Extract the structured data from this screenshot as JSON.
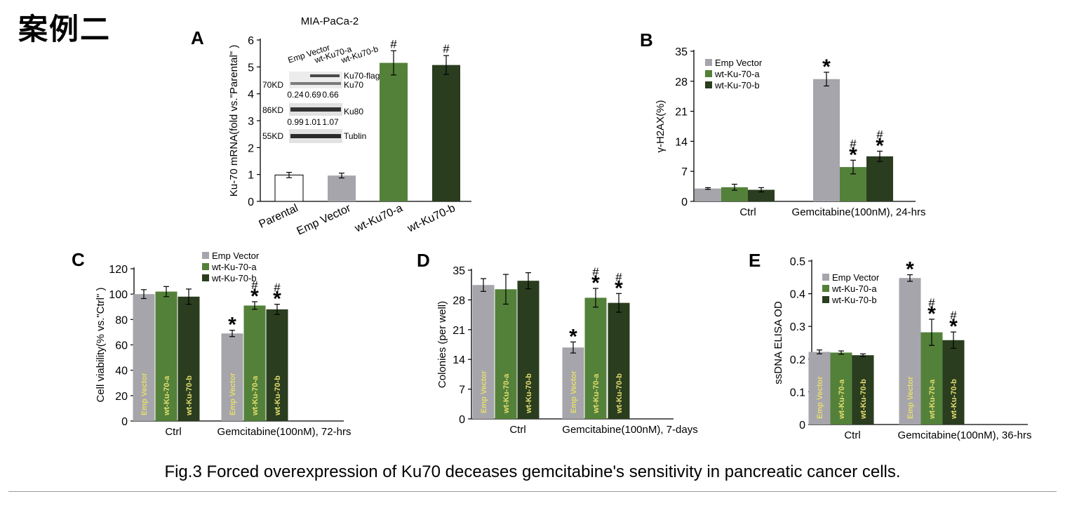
{
  "page": {
    "heading": "案例二",
    "caption": "Fig.3 Forced overexpression of Ku70 deceases gemcitabine's sensitivity in pancreatic cancer cells."
  },
  "colors": {
    "parental": "#ffffff",
    "emp_vector": "#a6a5ab",
    "wt_a": "#538139",
    "wt_b": "#2a3d1f",
    "inner_label": "#e4de6e"
  },
  "chart_data": [
    {
      "panel": "A",
      "type": "bar",
      "title": "MIA-PaCa-2",
      "ylabel": "Ku-70 mRNA(fold vs.\"Parental\" )",
      "ylim": [
        0,
        6
      ],
      "yticks": [
        0,
        1,
        2,
        3,
        4,
        5,
        6
      ],
      "categories": [
        "Parental",
        "Emp Vector",
        "wt-Ku70-a",
        "wt-Ku70-b"
      ],
      "values": [
        0.98,
        0.96,
        5.15,
        5.07
      ],
      "errors": [
        0.1,
        0.09,
        0.45,
        0.35
      ],
      "annotations": [
        "",
        "",
        "#",
        "#"
      ],
      "inset_blot": {
        "lanes": [
          "Emp Vector",
          "wt-Ku70-a",
          "wt-Ku70-b"
        ],
        "rows": [
          {
            "marker": "70KD",
            "bands": [
              "Ku70-flag",
              "Ku70"
            ],
            "values": [
              "0.24",
              "0.69",
              "0.66"
            ]
          },
          {
            "marker": "86KD",
            "bands": [
              "Ku80"
            ],
            "values": [
              "0.99",
              "1.01",
              "1.07"
            ]
          },
          {
            "marker": "55KD",
            "bands": [
              "Tublin"
            ],
            "values": []
          }
        ]
      }
    },
    {
      "panel": "B",
      "type": "bar",
      "ylabel": "γ-H2AX(%)",
      "ylim": [
        0,
        35
      ],
      "yticks": [
        0,
        7,
        14,
        21,
        28,
        35
      ],
      "groups": [
        "Ctrl",
        "Gemcitabine(100nM), 24-hrs"
      ],
      "legend": [
        "Emp Vector",
        "wt-Ku-70-a",
        "wt-Ku-70-b"
      ],
      "legend_position": "top-left",
      "series": [
        {
          "name": "Emp Vector",
          "values": [
            3.0,
            28.5
          ],
          "errors": [
            0.2,
            1.6
          ],
          "annotations": [
            "",
            "*"
          ]
        },
        {
          "name": "wt-Ku-70-a",
          "values": [
            3.3,
            8.0
          ],
          "errors": [
            0.7,
            1.6
          ],
          "annotations": [
            "",
            "#*"
          ]
        },
        {
          "name": "wt-Ku-70-b",
          "values": [
            2.7,
            10.5
          ],
          "errors": [
            0.5,
            1.2
          ],
          "annotations": [
            "",
            "#*"
          ]
        }
      ],
      "bar_labels": false
    },
    {
      "panel": "C",
      "type": "bar",
      "ylabel": "Cell viability(% vs.\"Ctrl\" )",
      "ylim": [
        0,
        120
      ],
      "yticks": [
        0,
        20,
        40,
        60,
        80,
        100,
        120
      ],
      "groups": [
        "Ctrl",
        "Gemcitabine(100nM), 72-hrs"
      ],
      "legend": [
        "Emp Vector",
        "wt-Ku-70-a",
        "wt-Ku-70-b"
      ],
      "legend_position": "top-center",
      "series": [
        {
          "name": "Emp Vector",
          "values": [
            100,
            69
          ],
          "errors": [
            3.5,
            2.5
          ],
          "annotations": [
            "",
            "*"
          ]
        },
        {
          "name": "wt-Ku-70-a",
          "values": [
            102,
            91
          ],
          "errors": [
            4,
            3
          ],
          "annotations": [
            "",
            "#*"
          ]
        },
        {
          "name": "wt-Ku-70-b",
          "values": [
            98,
            88
          ],
          "errors": [
            6,
            4
          ],
          "annotations": [
            "",
            "#*"
          ]
        }
      ],
      "bar_labels": true
    },
    {
      "panel": "D",
      "type": "bar",
      "ylabel": "Colonies (per well)",
      "ylim": [
        0,
        35
      ],
      "yticks": [
        0,
        7,
        14,
        21,
        28,
        35
      ],
      "groups": [
        "Ctrl",
        "Gemcitabine(100nM), 7-days"
      ],
      "legend": [],
      "series": [
        {
          "name": "Emp Vector",
          "values": [
            31.5,
            16.8
          ],
          "errors": [
            1.5,
            1.3
          ],
          "annotations": [
            "",
            "*"
          ]
        },
        {
          "name": "wt-Ku-70-a",
          "values": [
            30.5,
            28.5
          ],
          "errors": [
            3.5,
            2.2
          ],
          "annotations": [
            "",
            "#*"
          ]
        },
        {
          "name": "wt-Ku-70-b",
          "values": [
            32.5,
            27.3
          ],
          "errors": [
            1.9,
            2.2
          ],
          "annotations": [
            "",
            "#*"
          ]
        }
      ],
      "bar_labels": true
    },
    {
      "panel": "E",
      "type": "bar",
      "ylabel": "ssDNA ELISA OD",
      "ylim": [
        0,
        0.5
      ],
      "yticks": [
        0,
        0.1,
        0.2,
        0.3,
        0.4,
        0.5
      ],
      "groups": [
        "Ctrl",
        "Gemcitabine(100nM), 36-hrs"
      ],
      "legend": [
        "Emp Vector",
        "wt-Ku-70-a",
        "wt-Ku-70-b"
      ],
      "legend_position": "top-left",
      "series": [
        {
          "name": "Emp Vector",
          "values": [
            0.222,
            0.448
          ],
          "errors": [
            0.006,
            0.01
          ],
          "annotations": [
            "",
            "*"
          ]
        },
        {
          "name": "wt-Ku-70-a",
          "values": [
            0.22,
            0.282
          ],
          "errors": [
            0.005,
            0.04
          ],
          "annotations": [
            "",
            "#*"
          ]
        },
        {
          "name": "wt-Ku-70-b",
          "values": [
            0.212,
            0.258
          ],
          "errors": [
            0.004,
            0.025
          ],
          "annotations": [
            "",
            "#*"
          ]
        }
      ],
      "bar_labels": true
    }
  ]
}
